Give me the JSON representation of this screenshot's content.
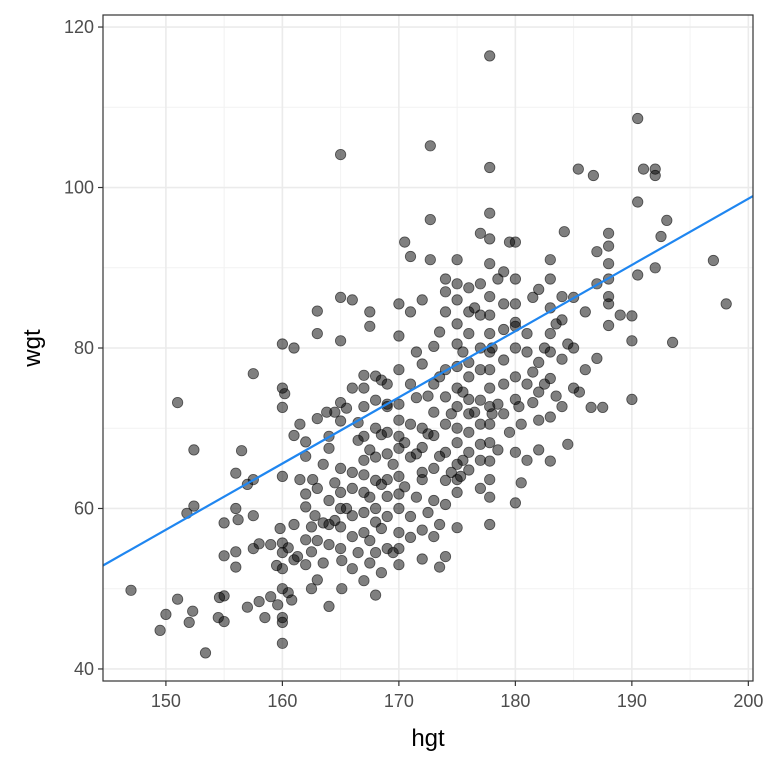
{
  "chart_data": {
    "type": "scatter",
    "title": "",
    "xlabel": "hgt",
    "ylabel": "wgt",
    "xlim": [
      144.6,
      200.4
    ],
    "ylim": [
      38.5,
      121.5
    ],
    "x_ticks": [
      150,
      160,
      170,
      180,
      190,
      200
    ],
    "y_ticks": [
      40,
      60,
      80,
      100,
      120
    ],
    "grid": true,
    "legend": "none",
    "colors": {
      "points": "#000000",
      "fit_line": "#1f86f0",
      "grid_major": "#ebebeb",
      "grid_minor": "#f2f2f2",
      "panel_border": "#333333"
    },
    "point_opacity": 0.5,
    "fit_line": {
      "intercept": -66.4,
      "slope": 0.825
    },
    "points": [
      [
        147.0,
        49.8
      ],
      [
        149.5,
        44.8
      ],
      [
        150.0,
        46.8
      ],
      [
        151.0,
        48.7
      ],
      [
        151.0,
        73.2
      ],
      [
        151.8,
        59.4
      ],
      [
        152.0,
        45.8
      ],
      [
        152.3,
        47.2
      ],
      [
        152.4,
        60.3
      ],
      [
        152.4,
        67.3
      ],
      [
        153.4,
        42.0
      ],
      [
        154.5,
        46.4
      ],
      [
        154.6,
        48.9
      ],
      [
        155.0,
        54.1
      ],
      [
        155.0,
        58.2
      ],
      [
        155.0,
        45.9
      ],
      [
        155.0,
        49.1
      ],
      [
        156.0,
        52.7
      ],
      [
        156.0,
        54.6
      ],
      [
        156.0,
        60.0
      ],
      [
        156.0,
        64.4
      ],
      [
        156.2,
        58.6
      ],
      [
        156.5,
        67.2
      ],
      [
        157.0,
        63.0
      ],
      [
        157.0,
        47.7
      ],
      [
        157.5,
        55.0
      ],
      [
        157.5,
        63.6
      ],
      [
        157.5,
        76.8
      ],
      [
        157.5,
        59.1
      ],
      [
        158.0,
        48.4
      ],
      [
        158.0,
        55.6
      ],
      [
        158.5,
        46.4
      ],
      [
        159.0,
        55.5
      ],
      [
        159.0,
        49.0
      ],
      [
        159.5,
        52.9
      ],
      [
        159.6,
        48.0
      ],
      [
        159.8,
        57.5
      ],
      [
        160.0,
        45.8
      ],
      [
        160.0,
        50.0
      ],
      [
        160.0,
        52.5
      ],
      [
        160.0,
        54.5
      ],
      [
        160.0,
        55.7
      ],
      [
        160.0,
        64.0
      ],
      [
        160.0,
        72.6
      ],
      [
        160.0,
        75.0
      ],
      [
        160.0,
        43.2
      ],
      [
        160.0,
        80.5
      ],
      [
        160.0,
        46.4
      ],
      [
        160.2,
        74.3
      ],
      [
        160.5,
        49.5
      ],
      [
        160.5,
        55.1
      ],
      [
        160.8,
        48.6
      ],
      [
        161.0,
        53.6
      ],
      [
        161.0,
        58.0
      ],
      [
        161.0,
        69.1
      ],
      [
        161.0,
        80.0
      ],
      [
        161.3,
        54.0
      ],
      [
        161.5,
        63.6
      ],
      [
        161.5,
        70.5
      ],
      [
        162.0,
        53.0
      ],
      [
        162.0,
        56.1
      ],
      [
        162.0,
        60.2
      ],
      [
        162.0,
        61.8
      ],
      [
        162.0,
        66.5
      ],
      [
        162.0,
        68.3
      ],
      [
        162.5,
        50.0
      ],
      [
        162.5,
        54.6
      ],
      [
        162.5,
        57.7
      ],
      [
        162.6,
        63.6
      ],
      [
        162.8,
        59.1
      ],
      [
        163.0,
        51.1
      ],
      [
        163.0,
        56.0
      ],
      [
        163.0,
        62.5
      ],
      [
        163.0,
        71.2
      ],
      [
        163.0,
        81.8
      ],
      [
        163.0,
        84.6
      ],
      [
        163.5,
        53.2
      ],
      [
        163.5,
        58.2
      ],
      [
        163.5,
        65.5
      ],
      [
        163.8,
        72.0
      ],
      [
        164.0,
        47.8
      ],
      [
        164.0,
        55.5
      ],
      [
        164.0,
        58.0
      ],
      [
        164.0,
        61.0
      ],
      [
        164.0,
        67.5
      ],
      [
        164.5,
        63.2
      ],
      [
        164.5,
        72.0
      ],
      [
        165.0,
        55.0
      ],
      [
        165.0,
        57.7
      ],
      [
        165.0,
        60.0
      ],
      [
        165.0,
        62.0
      ],
      [
        165.0,
        65.0
      ],
      [
        165.0,
        70.9
      ],
      [
        165.0,
        73.2
      ],
      [
        165.0,
        80.9
      ],
      [
        165.0,
        86.3
      ],
      [
        165.0,
        104.1
      ],
      [
        165.1,
        50.0
      ],
      [
        165.1,
        53.5
      ],
      [
        165.5,
        60.0
      ],
      [
        165.5,
        72.5
      ],
      [
        166.0,
        52.5
      ],
      [
        166.0,
        56.5
      ],
      [
        166.0,
        59.1
      ],
      [
        166.0,
        64.5
      ],
      [
        166.0,
        75.0
      ],
      [
        166.0,
        86.0
      ],
      [
        166.5,
        68.5
      ],
      [
        166.5,
        54.5
      ],
      [
        167.0,
        51.0
      ],
      [
        167.0,
        57.0
      ],
      [
        167.0,
        59.5
      ],
      [
        167.0,
        62.0
      ],
      [
        167.0,
        64.2
      ],
      [
        167.0,
        66.0
      ],
      [
        167.0,
        69.0
      ],
      [
        167.0,
        72.7
      ],
      [
        167.0,
        75.0
      ],
      [
        167.0,
        76.6
      ],
      [
        167.5,
        53.2
      ],
      [
        167.5,
        56.0
      ],
      [
        167.5,
        61.4
      ],
      [
        167.5,
        67.3
      ],
      [
        167.5,
        82.7
      ],
      [
        167.5,
        84.5
      ],
      [
        168.0,
        49.2
      ],
      [
        168.0,
        54.5
      ],
      [
        168.0,
        58.3
      ],
      [
        168.0,
        60.0
      ],
      [
        168.0,
        63.5
      ],
      [
        168.0,
        66.4
      ],
      [
        168.0,
        70.0
      ],
      [
        168.0,
        73.5
      ],
      [
        168.5,
        52.0
      ],
      [
        168.5,
        57.5
      ],
      [
        168.5,
        69.2
      ],
      [
        168.5,
        76.0
      ],
      [
        169.0,
        55.0
      ],
      [
        169.0,
        59.0
      ],
      [
        169.0,
        61.5
      ],
      [
        169.0,
        63.6
      ],
      [
        169.0,
        66.8
      ],
      [
        169.0,
        69.5
      ],
      [
        169.0,
        72.7
      ],
      [
        169.0,
        75.5
      ],
      [
        169.5,
        54.5
      ],
      [
        169.5,
        65.5
      ],
      [
        170.0,
        53.0
      ],
      [
        170.0,
        55.0
      ],
      [
        170.0,
        57.0
      ],
      [
        170.0,
        60.0
      ],
      [
        170.0,
        61.8
      ],
      [
        170.0,
        64.0
      ],
      [
        170.0,
        67.5
      ],
      [
        170.0,
        69.0
      ],
      [
        170.0,
        71.0
      ],
      [
        170.0,
        73.0
      ],
      [
        170.0,
        77.3
      ],
      [
        170.0,
        81.5
      ],
      [
        170.0,
        85.5
      ],
      [
        170.5,
        62.7
      ],
      [
        170.5,
        68.2
      ],
      [
        170.5,
        93.2
      ],
      [
        171.0,
        56.4
      ],
      [
        171.0,
        59.0
      ],
      [
        171.0,
        66.4
      ],
      [
        171.0,
        70.5
      ],
      [
        171.0,
        75.5
      ],
      [
        171.0,
        84.5
      ],
      [
        171.0,
        91.4
      ],
      [
        171.5,
        61.4
      ],
      [
        171.5,
        66.8
      ],
      [
        171.5,
        73.8
      ],
      [
        172.0,
        53.7
      ],
      [
        172.0,
        57.3
      ],
      [
        172.0,
        63.6
      ],
      [
        172.0,
        67.6
      ],
      [
        172.0,
        70.0
      ],
      [
        172.0,
        78.0
      ],
      [
        172.0,
        86.0
      ],
      [
        172.5,
        59.5
      ],
      [
        172.5,
        69.3
      ],
      [
        172.5,
        74.0
      ],
      [
        172.7,
        91.0
      ],
      [
        172.7,
        96.0
      ],
      [
        172.7,
        105.2
      ],
      [
        173.0,
        56.5
      ],
      [
        173.0,
        61.0
      ],
      [
        173.0,
        65.0
      ],
      [
        173.0,
        69.1
      ],
      [
        173.0,
        72.0
      ],
      [
        173.0,
        75.5
      ],
      [
        173.0,
        80.2
      ],
      [
        173.5,
        52.7
      ],
      [
        173.5,
        58.0
      ],
      [
        173.5,
        66.5
      ],
      [
        173.5,
        82.0
      ],
      [
        174.0,
        54.0
      ],
      [
        174.0,
        60.5
      ],
      [
        174.0,
        63.5
      ],
      [
        174.0,
        67.0
      ],
      [
        174.0,
        70.5
      ],
      [
        174.0,
        73.9
      ],
      [
        174.0,
        77.3
      ],
      [
        174.0,
        84.5
      ],
      [
        174.0,
        87.0
      ],
      [
        174.0,
        88.6
      ],
      [
        174.5,
        64.5
      ],
      [
        174.5,
        71.8
      ],
      [
        175.0,
        57.6
      ],
      [
        175.0,
        62.0
      ],
      [
        175.0,
        63.6
      ],
      [
        175.0,
        65.5
      ],
      [
        175.0,
        68.2
      ],
      [
        175.0,
        70.0
      ],
      [
        175.0,
        72.7
      ],
      [
        175.0,
        75.0
      ],
      [
        175.0,
        77.7
      ],
      [
        175.0,
        80.5
      ],
      [
        175.0,
        83.0
      ],
      [
        175.0,
        86.0
      ],
      [
        175.0,
        88.0
      ],
      [
        175.0,
        91.0
      ],
      [
        175.3,
        64.0
      ],
      [
        175.5,
        74.5
      ],
      [
        175.5,
        79.5
      ],
      [
        176.0,
        64.8
      ],
      [
        176.0,
        67.0
      ],
      [
        176.0,
        69.5
      ],
      [
        176.0,
        71.8
      ],
      [
        176.0,
        73.6
      ],
      [
        176.0,
        76.4
      ],
      [
        176.0,
        78.2
      ],
      [
        176.0,
        81.8
      ],
      [
        176.0,
        84.5
      ],
      [
        176.0,
        87.5
      ],
      [
        176.5,
        72.0
      ],
      [
        176.5,
        85.0
      ],
      [
        177.0,
        66.0
      ],
      [
        177.0,
        68.0
      ],
      [
        177.0,
        70.5
      ],
      [
        177.0,
        73.5
      ],
      [
        177.0,
        77.3
      ],
      [
        177.0,
        80.0
      ],
      [
        177.0,
        84.1
      ],
      [
        177.0,
        88.0
      ],
      [
        177.0,
        94.3
      ],
      [
        177.8,
        58.0
      ],
      [
        177.8,
        61.4
      ],
      [
        177.8,
        63.6
      ],
      [
        177.8,
        65.9
      ],
      [
        177.8,
        68.2
      ],
      [
        177.8,
        70.5
      ],
      [
        177.8,
        72.7
      ],
      [
        177.8,
        75.0
      ],
      [
        177.8,
        77.3
      ],
      [
        177.8,
        79.5
      ],
      [
        177.8,
        81.8
      ],
      [
        177.8,
        84.1
      ],
      [
        177.8,
        86.4
      ],
      [
        177.8,
        90.5
      ],
      [
        177.8,
        93.6
      ],
      [
        177.8,
        96.8
      ],
      [
        177.8,
        102.5
      ],
      [
        177.8,
        116.4
      ],
      [
        178.0,
        71.8
      ],
      [
        178.0,
        80.0
      ],
      [
        178.5,
        67.3
      ],
      [
        178.5,
        88.6
      ],
      [
        179.0,
        71.8
      ],
      [
        179.0,
        75.5
      ],
      [
        179.0,
        78.5
      ],
      [
        179.0,
        82.3
      ],
      [
        179.0,
        85.5
      ],
      [
        179.0,
        89.5
      ],
      [
        179.5,
        69.5
      ],
      [
        179.5,
        93.2
      ],
      [
        180.0,
        60.7
      ],
      [
        180.0,
        67.0
      ],
      [
        180.0,
        73.6
      ],
      [
        180.0,
        76.4
      ],
      [
        180.0,
        80.0
      ],
      [
        180.0,
        82.7
      ],
      [
        180.0,
        83.2
      ],
      [
        180.0,
        85.5
      ],
      [
        180.0,
        88.6
      ],
      [
        180.0,
        93.2
      ],
      [
        180.3,
        72.7
      ],
      [
        180.5,
        70.5
      ],
      [
        181.0,
        66.0
      ],
      [
        181.0,
        75.5
      ],
      [
        181.0,
        79.5
      ],
      [
        181.0,
        81.8
      ],
      [
        181.5,
        73.2
      ],
      [
        181.5,
        86.3
      ],
      [
        182.0,
        67.3
      ],
      [
        182.0,
        71.0
      ],
      [
        182.0,
        74.5
      ],
      [
        182.0,
        78.2
      ],
      [
        182.0,
        87.3
      ],
      [
        182.5,
        75.5
      ],
      [
        182.5,
        80.0
      ],
      [
        183.0,
        65.9
      ],
      [
        183.0,
        71.4
      ],
      [
        183.0,
        76.2
      ],
      [
        183.0,
        79.5
      ],
      [
        183.0,
        81.8
      ],
      [
        183.0,
        85.0
      ],
      [
        183.0,
        88.6
      ],
      [
        183.0,
        91.0
      ],
      [
        183.5,
        74.0
      ],
      [
        184.0,
        72.7
      ],
      [
        184.0,
        78.6
      ],
      [
        184.0,
        83.5
      ],
      [
        184.0,
        86.4
      ],
      [
        184.2,
        94.5
      ],
      [
        184.5,
        68.0
      ],
      [
        184.5,
        80.5
      ],
      [
        185.0,
        75.0
      ],
      [
        185.0,
        80.0
      ],
      [
        185.0,
        86.3
      ],
      [
        185.4,
        102.3
      ],
      [
        185.5,
        74.5
      ],
      [
        186.0,
        77.3
      ],
      [
        186.0,
        84.5
      ],
      [
        186.5,
        72.6
      ],
      [
        186.7,
        101.5
      ],
      [
        187.0,
        78.7
      ],
      [
        187.0,
        88.0
      ],
      [
        187.0,
        92.0
      ],
      [
        187.5,
        72.6
      ],
      [
        188.0,
        85.5
      ],
      [
        188.0,
        86.4
      ],
      [
        188.0,
        88.6
      ],
      [
        188.0,
        90.5
      ],
      [
        188.0,
        92.7
      ],
      [
        188.0,
        94.3
      ],
      [
        188.0,
        82.8
      ],
      [
        189.0,
        84.1
      ],
      [
        190.0,
        73.6
      ],
      [
        190.0,
        80.9
      ],
      [
        190.0,
        84.0
      ],
      [
        190.5,
        98.2
      ],
      [
        190.5,
        89.1
      ],
      [
        190.5,
        108.6
      ],
      [
        191.0,
        102.3
      ],
      [
        192.0,
        101.5
      ],
      [
        192.0,
        102.3
      ],
      [
        192.0,
        90.0
      ],
      [
        192.5,
        93.9
      ],
      [
        193.0,
        95.9
      ],
      [
        193.5,
        80.7
      ],
      [
        197.0,
        90.9
      ],
      [
        198.1,
        85.5
      ],
      [
        164.0,
        69.0
      ],
      [
        166.5,
        70.7
      ],
      [
        168.0,
        76.5
      ],
      [
        169.0,
        73.0
      ],
      [
        171.5,
        79.5
      ],
      [
        173.5,
        76.4
      ],
      [
        175.5,
        66.0
      ],
      [
        177.0,
        62.5
      ],
      [
        178.5,
        73.0
      ],
      [
        180.5,
        63.2
      ],
      [
        181.5,
        77.0
      ],
      [
        183.5,
        83.0
      ],
      [
        172.0,
        64.5
      ],
      [
        168.5,
        63.0
      ],
      [
        166.0,
        62.5
      ],
      [
        164.5,
        58.5
      ]
    ]
  }
}
